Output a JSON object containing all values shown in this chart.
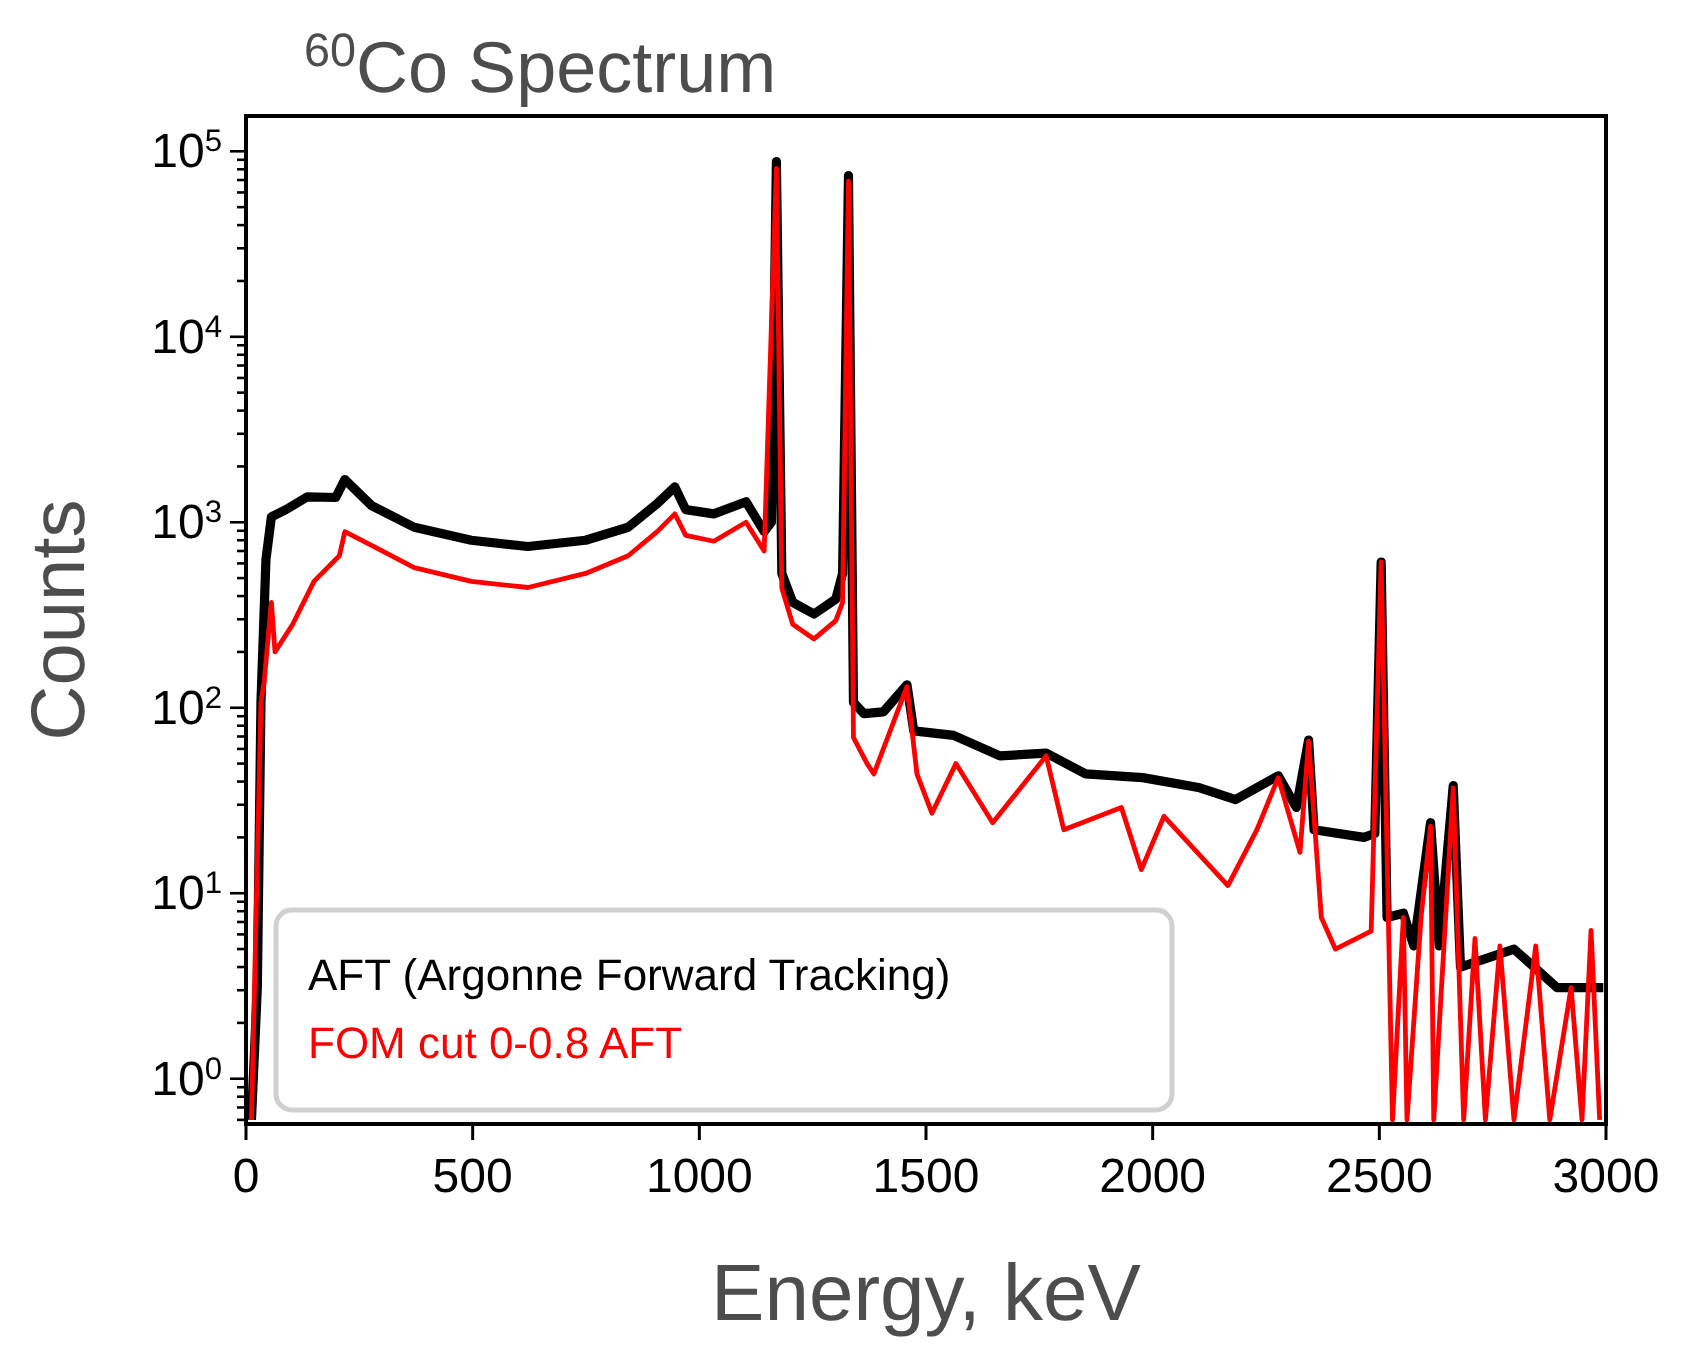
{
  "chart_data": {
    "type": "line",
    "title": "$^{60}$Co Spectrum",
    "xlabel": "Energy, keV",
    "ylabel": "Counts",
    "log": "y",
    "legend": "bottom left",
    "xlim": [
      0,
      3000
    ],
    "xticks": [
      0,
      500,
      1000,
      1500,
      2000,
      2500,
      3000
    ],
    "ylim": [
      0.57,
      155000
    ],
    "yticks": [
      {
        "value": 0.6,
        "label": null
      },
      {
        "value": 0.7,
        "label": null
      },
      {
        "value": 0.8,
        "label": null
      },
      {
        "value": 0.9,
        "label": null
      },
      {
        "value": 1,
        "label": "10$^{0}$"
      },
      {
        "value": 2,
        "label": null
      },
      {
        "value": 3,
        "label": null
      },
      {
        "value": 4,
        "label": null
      },
      {
        "value": 5,
        "label": null
      },
      {
        "value": 6,
        "label": null
      },
      {
        "value": 7,
        "label": null
      },
      {
        "value": 8,
        "label": null
      },
      {
        "value": 9,
        "label": null
      },
      {
        "value": 10,
        "label": "10$^{1}$"
      },
      {
        "value": 20,
        "label": null
      },
      {
        "value": 30,
        "label": null
      },
      {
        "value": 40,
        "label": null
      },
      {
        "value": 50,
        "label": null
      },
      {
        "value": 60,
        "label": null
      },
      {
        "value": 70,
        "label": null
      },
      {
        "value": 80,
        "label": null
      },
      {
        "value": 90,
        "label": null
      },
      {
        "value": 100,
        "label": "10$^{2}$"
      },
      {
        "value": 200,
        "label": null
      },
      {
        "value": 300,
        "label": null
      },
      {
        "value": 400,
        "label": null
      },
      {
        "value": 500,
        "label": null
      },
      {
        "value": 600,
        "label": null
      },
      {
        "value": 700,
        "label": null
      },
      {
        "value": 800,
        "label": null
      },
      {
        "value": 900,
        "label": null
      },
      {
        "value": 1000,
        "label": "10$^{3}$"
      },
      {
        "value": 2000,
        "label": null
      },
      {
        "value": 3000,
        "label": null
      },
      {
        "value": 4000,
        "label": null
      },
      {
        "value": 5000,
        "label": null
      },
      {
        "value": 6000,
        "label": null
      },
      {
        "value": 7000,
        "label": null
      },
      {
        "value": 8000,
        "label": null
      },
      {
        "value": 9000,
        "label": null
      },
      {
        "value": 10000,
        "label": "10$^{4}$"
      },
      {
        "value": 20000,
        "label": null
      },
      {
        "value": 30000,
        "label": null
      },
      {
        "value": 40000,
        "label": null
      },
      {
        "value": 50000,
        "label": null
      },
      {
        "value": 60000,
        "label": null
      },
      {
        "value": 70000,
        "label": null
      },
      {
        "value": 80000,
        "label": null
      },
      {
        "value": 90000,
        "label": null
      },
      {
        "value": 100000,
        "label": "10$^{5}$"
      }
    ],
    "series": [
      {
        "name": "AFT (Argonne Forward Tracking)",
        "color": "#000000",
        "x": [
          12,
          25,
          33,
          44,
          56,
          88,
          135,
          198,
          218,
          277,
          371,
          497,
          622,
          749,
          843,
          907,
          946,
          970,
          1032,
          1103,
          1143,
          1159,
          1170,
          1182,
          1206,
          1253,
          1301,
          1316,
          1329,
          1340,
          1363,
          1406,
          1458,
          1473,
          1561,
          1663,
          1765,
          1852,
          1978,
          2104,
          2183,
          2277,
          2317,
          2344,
          2356,
          2466,
          2490,
          2504,
          2517,
          2553,
          2576,
          2613,
          2632,
          2663,
          2679,
          2797,
          2892,
          2994
        ],
        "values": [
          0.6,
          3.1,
          107,
          630,
          1070,
          1170,
          1370,
          1360,
          1700,
          1230,
          940,
          800,
          740,
          800,
          940,
          1260,
          1550,
          1170,
          1110,
          1290,
          890,
          1000,
          88000,
          530,
          370,
          320,
          385,
          530,
          74000,
          107,
          93,
          95,
          133,
          75,
          71,
          55,
          57,
          44,
          42,
          37,
          32,
          43,
          29,
          67,
          22,
          20,
          21,
          610,
          7.4,
          7.8,
          5.2,
          24,
          5.2,
          38,
          4,
          5,
          3.1,
          3.1
        ]
      },
      {
        "name": "FOM cut 0-0.8 AFT",
        "color": "#ff0000",
        "x": [
          12,
          33,
          40,
          56,
          64,
          103,
          150,
          206,
          218,
          277,
          371,
          497,
          622,
          749,
          843,
          907,
          946,
          970,
          1032,
          1103,
          1143,
          1170,
          1182,
          1206,
          1253,
          1301,
          1316,
          1329,
          1340,
          1370,
          1385,
          1458,
          1480,
          1513,
          1566,
          1647,
          1765,
          1804,
          1931,
          1975,
          2025,
          2166,
          2230,
          2277,
          2325,
          2344,
          2372,
          2403,
          2482,
          2504,
          2529,
          2553,
          2561,
          2592,
          2613,
          2620,
          2663,
          2686,
          2711,
          2734,
          2766,
          2797,
          2845,
          2876,
          2923,
          2947,
          2967,
          2986
        ],
        "values": [
          0.6,
          107,
          138,
          370,
          200,
          282,
          480,
          660,
          890,
          750,
          570,
          480,
          445,
          530,
          660,
          890,
          1110,
          850,
          790,
          1000,
          700,
          81000,
          440,
          282,
          235,
          295,
          370,
          69000,
          69,
          50,
          44,
          130,
          44,
          27,
          50,
          24,
          55,
          22,
          29,
          13.4,
          26,
          11,
          22,
          42,
          16.6,
          66,
          7.4,
          5,
          6.25,
          611,
          0.6,
          7.4,
          0.6,
          7.4,
          23,
          0.6,
          37,
          0.6,
          5.7,
          0.6,
          5.2,
          0.6,
          5.2,
          0.6,
          3.1,
          0.6,
          6.3,
          0.6
        ]
      }
    ]
  }
}
